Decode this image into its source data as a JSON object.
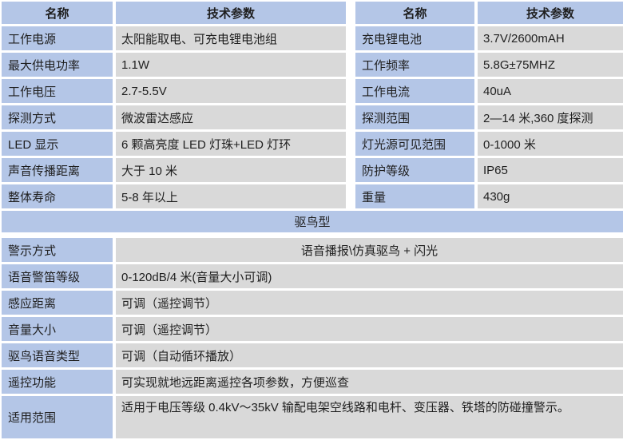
{
  "colors": {
    "header_blue": "#b4c6e7",
    "cell_gray": "#d9d9d9",
    "text": "#1f1f1f"
  },
  "top_tables": {
    "left": {
      "header": {
        "name": "名称",
        "value": "技术参数"
      },
      "rows": [
        {
          "name": "工作电源",
          "value": "太阳能取电、可充电锂电池组"
        },
        {
          "name": "最大供电功率",
          "value": "1.1W"
        },
        {
          "name": "工作电压",
          "value": "2.7-5.5V"
        },
        {
          "name": "探测方式",
          "value": "微波雷达感应"
        },
        {
          "name": "LED 显示",
          "value": "6 颗高亮度 LED 灯珠+LED 灯环"
        },
        {
          "name": "声音传播距离",
          "value": "大于 10 米"
        },
        {
          "name": "整体寿命",
          "value": "5-8 年以上"
        }
      ]
    },
    "right": {
      "header": {
        "name": "名称",
        "value": "技术参数"
      },
      "rows": [
        {
          "name": "充电锂电池",
          "value": "3.7V/2600mAH"
        },
        {
          "name": "工作频率",
          "value": "5.8G±75MHZ"
        },
        {
          "name": "工作电流",
          "value": "40uA"
        },
        {
          "name": "探测范围",
          "value": "2—14 米,360 度探测"
        },
        {
          "name": "灯光源可见范围",
          "value": "0-1000 米"
        },
        {
          "name": "防护等级",
          "value": "IP65"
        },
        {
          "name": "重量",
          "value": "430g"
        }
      ]
    }
  },
  "section_banner": {
    "title": "驱鸟型"
  },
  "bottom_table": {
    "rows": [
      {
        "name": "警示方式",
        "value": "语音播报\\仿真驱鸟 + 闪光"
      },
      {
        "name": "语音警笛等级",
        "value": "0-120dB/4 米(音量大小可调)"
      },
      {
        "name": "感应距离",
        "value": "可调（遥控调节）"
      },
      {
        "name": "音量大小",
        "value": "可调（遥控调节）"
      },
      {
        "name": "驱鸟语音类型",
        "value": "可调（自动循环播放）"
      },
      {
        "name": "遥控功能",
        "value": "可实现就地远距离遥控各项参数，方便巡查"
      },
      {
        "name": "适用范围",
        "value": "适用于电压等级 0.4kV～35kV 输配电架空线路和电杆、变压器、铁塔的防碰撞警示。"
      }
    ]
  }
}
